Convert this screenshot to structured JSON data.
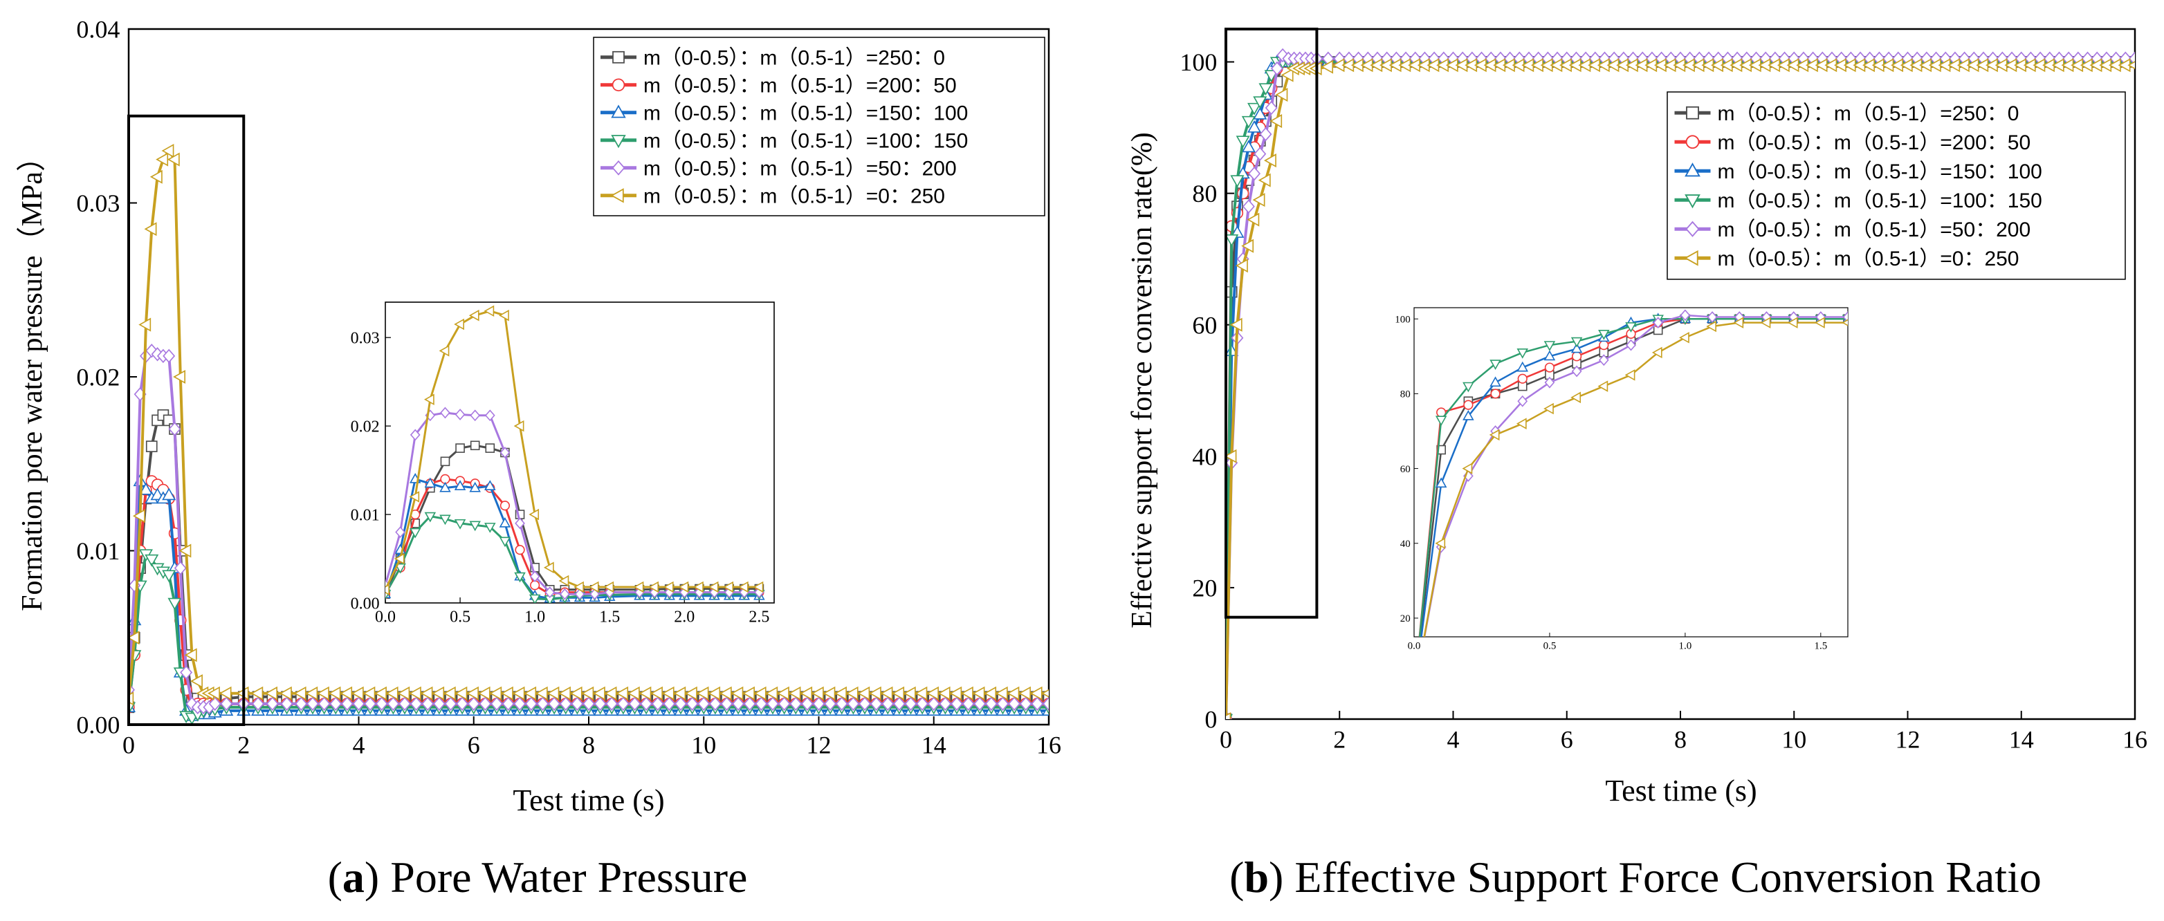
{
  "colors": {
    "s1": "#4d4d4d",
    "s2": "#f03838",
    "s3": "#1a6ec8",
    "s4": "#2e9e6e",
    "s5": "#a878e0",
    "s6": "#c8a020"
  },
  "chart_data": [
    {
      "id": "a",
      "type": "line",
      "caption_letter": "a",
      "caption_text": " Pore Water Pressure",
      "xlabel": "Test time (s)",
      "ylabel": "Formation pore water pressure（MPa）",
      "xlim": [
        0,
        16
      ],
      "ylim": [
        0,
        0.04
      ],
      "xticks": [
        "0",
        "2",
        "4",
        "6",
        "8",
        "10",
        "12",
        "14",
        "16"
      ],
      "yticks": [
        "0.00",
        "0.01",
        "0.02",
        "0.03",
        "0.04"
      ],
      "xtick_values": [
        0,
        2,
        4,
        6,
        8,
        10,
        12,
        14,
        16
      ],
      "ytick_values": [
        0,
        0.01,
        0.02,
        0.03,
        0.04
      ],
      "highlight_box": {
        "x": [
          0,
          2
        ],
        "y": [
          0,
          0.035
        ]
      },
      "legend_position": "top-right",
      "series": [
        {
          "name": "m（0-0.5）：m（0.5-1）=250：0",
          "marker": "square",
          "color_key": "s1",
          "x": [
            0,
            0.1,
            0.2,
            0.3,
            0.4,
            0.5,
            0.6,
            0.7,
            0.8,
            0.9,
            1.0,
            1.1,
            1.2,
            1.3,
            1.4,
            1.5,
            1.7,
            2.0,
            2.5,
            3,
            4,
            6,
            8,
            10,
            12,
            14,
            16
          ],
          "y": [
            0.001,
            0.005,
            0.009,
            0.013,
            0.016,
            0.0175,
            0.0178,
            0.0175,
            0.017,
            0.01,
            0.004,
            0.0015,
            0.0015,
            0.0015,
            0.0015,
            0.0015,
            0.0015,
            0.0016,
            0.0016,
            0.0016,
            0.0016,
            0.0016,
            0.0016,
            0.0016,
            0.0016,
            0.0016,
            0.0016
          ]
        },
        {
          "name": "m（0-0.5）：m（0.5-1）=200：50",
          "marker": "circle",
          "color_key": "s2",
          "x": [
            0,
            0.1,
            0.2,
            0.3,
            0.4,
            0.5,
            0.6,
            0.7,
            0.8,
            0.9,
            1.0,
            1.1,
            1.2,
            1.3,
            1.4,
            1.5,
            1.7,
            2.0,
            2.5,
            3,
            4,
            6,
            8,
            10,
            12,
            14,
            16
          ],
          "y": [
            0.001,
            0.004,
            0.01,
            0.0135,
            0.014,
            0.0138,
            0.0135,
            0.013,
            0.011,
            0.006,
            0.002,
            0.001,
            0.0012,
            0.0012,
            0.0012,
            0.0012,
            0.0012,
            0.0012,
            0.0012,
            0.0012,
            0.0012,
            0.0012,
            0.0012,
            0.0012,
            0.0012,
            0.0012,
            0.0012
          ]
        },
        {
          "name": "m（0-0.5）：m（0.5-1）=150：100",
          "marker": "triangle-up",
          "color_key": "s3",
          "x": [
            0,
            0.1,
            0.2,
            0.3,
            0.4,
            0.5,
            0.6,
            0.7,
            0.8,
            0.9,
            1.0,
            1.1,
            1.2,
            1.3,
            1.4,
            1.5,
            1.7,
            2.0,
            2.5,
            3,
            4,
            6,
            8,
            10,
            12,
            14,
            16
          ],
          "y": [
            0.001,
            0.006,
            0.014,
            0.0135,
            0.013,
            0.0132,
            0.013,
            0.0132,
            0.009,
            0.003,
            0.0008,
            0.0005,
            0.0006,
            0.0006,
            0.0006,
            0.0007,
            0.0008,
            0.0008,
            0.0008,
            0.0008,
            0.0008,
            0.0008,
            0.0008,
            0.0008,
            0.0008,
            0.0008,
            0.0008
          ]
        },
        {
          "name": "m（0-0.5）：m（0.5-1）=100：150",
          "marker": "triangle-down",
          "color_key": "s4",
          "x": [
            0,
            0.1,
            0.2,
            0.3,
            0.4,
            0.5,
            0.6,
            0.7,
            0.8,
            0.9,
            1.0,
            1.1,
            1.2,
            1.3,
            1.4,
            1.5,
            1.7,
            2.0,
            2.5,
            3,
            4,
            6,
            8,
            10,
            12,
            14,
            16
          ],
          "y": [
            0.001,
            0.004,
            0.008,
            0.0098,
            0.0095,
            0.009,
            0.0088,
            0.0086,
            0.007,
            0.003,
            0.0005,
            0.0004,
            0.0006,
            0.0008,
            0.0009,
            0.0009,
            0.001,
            0.001,
            0.001,
            0.001,
            0.001,
            0.001,
            0.001,
            0.001,
            0.001,
            0.001,
            0.001
          ]
        },
        {
          "name": "m（0-0.5）：m（0.5-1）=50：200",
          "marker": "diamond",
          "color_key": "s5",
          "x": [
            0,
            0.1,
            0.2,
            0.3,
            0.4,
            0.5,
            0.6,
            0.7,
            0.8,
            0.9,
            1.0,
            1.1,
            1.2,
            1.3,
            1.4,
            1.5,
            1.7,
            2.0,
            2.5,
            3,
            4,
            6,
            8,
            10,
            12,
            14,
            16
          ],
          "y": [
            0.002,
            0.008,
            0.019,
            0.0212,
            0.0215,
            0.0213,
            0.0212,
            0.0212,
            0.017,
            0.009,
            0.003,
            0.0012,
            0.001,
            0.001,
            0.001,
            0.0012,
            0.0012,
            0.0012,
            0.0012,
            0.0012,
            0.0012,
            0.0012,
            0.0012,
            0.0012,
            0.0012,
            0.0012,
            0.0012
          ]
        },
        {
          "name": "m（0-0.5）：m（0.5-1）=0：250",
          "marker": "triangle-left",
          "color_key": "s6",
          "x": [
            0,
            0.1,
            0.2,
            0.3,
            0.4,
            0.5,
            0.6,
            0.7,
            0.8,
            0.9,
            1.0,
            1.1,
            1.2,
            1.3,
            1.4,
            1.5,
            1.7,
            2.0,
            2.5,
            3,
            4,
            6,
            8,
            10,
            12,
            14,
            16
          ],
          "y": [
            0.0015,
            0.005,
            0.012,
            0.023,
            0.0285,
            0.0315,
            0.0325,
            0.033,
            0.0325,
            0.02,
            0.01,
            0.004,
            0.0025,
            0.0018,
            0.0018,
            0.0018,
            0.0018,
            0.0018,
            0.0018,
            0.0018,
            0.0018,
            0.0018,
            0.0018,
            0.0018,
            0.0018,
            0.0018,
            0.0018
          ]
        }
      ],
      "inset": {
        "xlim": [
          0,
          2.6
        ],
        "ylim": [
          0,
          0.034
        ],
        "xticks": [
          "0.0",
          "0.5",
          "1.0",
          "1.5",
          "2.0",
          "2.5"
        ],
        "xtick_values": [
          0,
          0.5,
          1.0,
          1.5,
          2.0,
          2.5
        ],
        "yticks": [
          "0.00",
          "0.01",
          "0.02",
          "0.03"
        ],
        "ytick_values": [
          0,
          0.01,
          0.02,
          0.03
        ],
        "x_max_plot": 2.6
      }
    },
    {
      "id": "b",
      "type": "line",
      "caption_letter": "b",
      "caption_text": " Effective Support Force Conversion Ratio",
      "xlabel": "Test time (s)",
      "ylabel": "Effective support force conversion rate(%)",
      "xlim": [
        0,
        16
      ],
      "ylim": [
        0,
        105
      ],
      "xticks": [
        "0",
        "2",
        "4",
        "6",
        "8",
        "10",
        "12",
        "14",
        "16"
      ],
      "yticks": [
        "0",
        "20",
        "40",
        "60",
        "80",
        "100"
      ],
      "xtick_values": [
        0,
        2,
        4,
        6,
        8,
        10,
        12,
        14,
        16
      ],
      "ytick_values": [
        0,
        20,
        40,
        60,
        80,
        100
      ],
      "highlight_box": {
        "x": [
          0,
          1.6
        ],
        "y": [
          15.5,
          105
        ]
      },
      "legend_position": "upper-right",
      "series": [
        {
          "name": "m（0-0.5）：m（0.5-1）=250：0",
          "marker": "square",
          "color_key": "s1",
          "x": [
            0,
            0.1,
            0.2,
            0.3,
            0.4,
            0.5,
            0.6,
            0.7,
            0.8,
            0.9,
            1.0,
            1.1,
            1.2,
            1.3,
            1.4,
            1.5,
            1.6,
            2,
            4,
            6,
            8,
            10,
            12,
            14,
            16
          ],
          "y": [
            0,
            65,
            78,
            80,
            82,
            85,
            88,
            91,
            94,
            97,
            100,
            100,
            100,
            100,
            100,
            100,
            100,
            100,
            100,
            100,
            100,
            100,
            100,
            100,
            100
          ]
        },
        {
          "name": "m（0-0.5）：m（0.5-1）=200：50",
          "marker": "circle",
          "color_key": "s2",
          "x": [
            0,
            0.1,
            0.2,
            0.3,
            0.4,
            0.5,
            0.6,
            0.7,
            0.8,
            0.9,
            1.0,
            1.1,
            1.2,
            1.3,
            1.4,
            1.5,
            1.6,
            2,
            4,
            6,
            8,
            10,
            12,
            14,
            16
          ],
          "y": [
            0,
            75,
            77,
            80,
            84,
            87,
            90,
            93,
            96,
            99,
            100,
            100,
            100,
            100,
            100,
            100,
            100,
            100,
            100,
            100,
            100,
            100,
            100,
            100,
            100
          ]
        },
        {
          "name": "m（0-0.5）：m（0.5-1）=150：100",
          "marker": "triangle-up",
          "color_key": "s3",
          "x": [
            0,
            0.1,
            0.2,
            0.3,
            0.4,
            0.5,
            0.6,
            0.7,
            0.8,
            0.9,
            1.0,
            1.1,
            1.2,
            1.3,
            1.4,
            1.5,
            1.6,
            2,
            4,
            6,
            8,
            10,
            12,
            14,
            16
          ],
          "y": [
            0,
            56,
            74,
            83,
            87,
            90,
            92,
            95,
            99,
            100,
            100,
            100,
            100,
            100,
            100,
            100,
            100,
            100,
            100,
            100,
            100,
            100,
            100,
            100,
            100
          ]
        },
        {
          "name": "m（0-0.5）：m（0.5-1）=100：150",
          "marker": "triangle-down",
          "color_key": "s4",
          "x": [
            0,
            0.1,
            0.2,
            0.3,
            0.4,
            0.5,
            0.6,
            0.7,
            0.8,
            0.9,
            1.0,
            1.1,
            1.2,
            1.3,
            1.4,
            1.5,
            1.6,
            2,
            4,
            6,
            8,
            10,
            12,
            14,
            16
          ],
          "y": [
            0,
            73,
            82,
            88,
            91,
            93,
            94,
            96,
            98,
            100,
            100,
            100,
            100,
            100,
            100,
            100,
            100,
            100,
            100,
            100,
            100,
            100,
            100,
            100,
            100
          ]
        },
        {
          "name": "m（0-0.5）：m（0.5-1）=50：200",
          "marker": "diamond",
          "color_key": "s5",
          "x": [
            0,
            0.1,
            0.2,
            0.3,
            0.4,
            0.5,
            0.6,
            0.7,
            0.8,
            0.9,
            1.0,
            1.1,
            1.2,
            1.3,
            1.4,
            1.5,
            1.6,
            2,
            4,
            6,
            8,
            10,
            12,
            14,
            16
          ],
          "y": [
            0,
            39,
            58,
            70,
            78,
            83,
            86,
            89,
            93,
            99,
            101,
            100.5,
            100.5,
            100.5,
            100.5,
            100.5,
            100.5,
            100.5,
            100.5,
            100.5,
            100.5,
            100.5,
            100.5,
            100.5,
            100.5
          ]
        },
        {
          "name": "m（0-0.5）：m（0.5-1）=0：250",
          "marker": "triangle-left",
          "color_key": "s6",
          "x": [
            0,
            0.1,
            0.2,
            0.3,
            0.4,
            0.5,
            0.6,
            0.7,
            0.8,
            0.9,
            1.0,
            1.1,
            1.2,
            1.3,
            1.4,
            1.5,
            1.6,
            2,
            4,
            6,
            8,
            10,
            12,
            14,
            16
          ],
          "y": [
            0,
            40,
            60,
            69,
            72,
            76,
            79,
            82,
            85,
            91,
            95,
            98,
            99,
            99,
            99,
            99,
            99,
            99.5,
            99.5,
            99.5,
            99.5,
            99.5,
            99.5,
            99.5,
            99.5
          ]
        }
      ],
      "inset": {
        "xlim": [
          0,
          1.6
        ],
        "ylim": [
          15,
          103
        ],
        "xticks": [
          "0.0",
          "0.5",
          "1.0",
          "1.5"
        ],
        "xtick_values": [
          0,
          0.5,
          1.0,
          1.5
        ],
        "yticks": [
          "20",
          "40",
          "60",
          "80",
          "100"
        ],
        "ytick_values": [
          20,
          40,
          60,
          80,
          100
        ],
        "x_max_plot": 1.6
      }
    }
  ]
}
